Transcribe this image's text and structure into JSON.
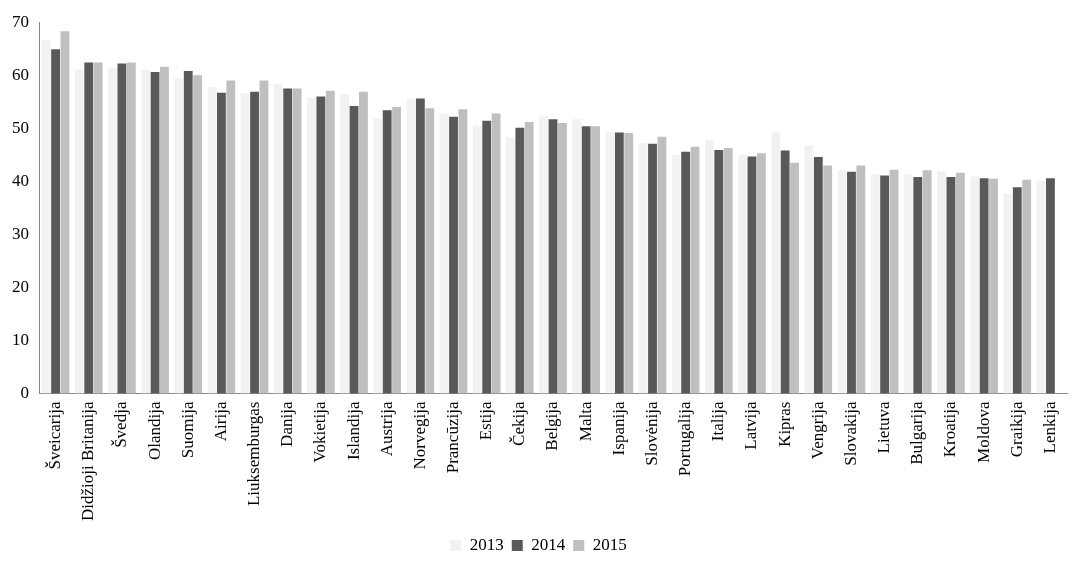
{
  "chart_data": {
    "type": "bar",
    "categories": [
      "Šveicarija",
      "Didžioji Britanija",
      "Švedja",
      "Olandija",
      "Suomija",
      "Airija",
      "Liuksemburgas",
      "Danija",
      "Vokietija",
      "Islandija",
      "Austrija",
      "Norvegija",
      "Prancūzija",
      "Estija",
      "Čekija",
      "Belgija",
      "Malta",
      "Ispanija",
      "Slovėnija",
      "Portugalija",
      "Italija",
      "Latvija",
      "Kipras",
      "Vengrija",
      "Slovakija",
      "Lietuva",
      "Bulgarija",
      "Kroatija",
      "Moldova",
      "Graikija",
      "Lenkija"
    ],
    "series": [
      {
        "name": "2013",
        "color": "#f2f2f2",
        "values": [
          66.6,
          61.2,
          61.4,
          61.0,
          59.5,
          57.8,
          56.6,
          58.3,
          55.8,
          56.4,
          51.8,
          55.6,
          52.8,
          50.5,
          48.3,
          52.4,
          51.7,
          49.3,
          47.2,
          45.0,
          47.8,
          45.0,
          49.2,
          46.8,
          42.1,
          41.4,
          41.3,
          41.9,
          40.9,
          37.7,
          40.1
        ]
      },
      {
        "name": "2014",
        "color": "#595959",
        "values": [
          64.9,
          62.4,
          62.2,
          60.6,
          60.8,
          56.7,
          56.9,
          57.5,
          56.0,
          54.2,
          53.4,
          55.6,
          52.2,
          51.4,
          50.1,
          51.7,
          50.4,
          49.2,
          47.1,
          45.6,
          45.9,
          44.7,
          45.8,
          44.6,
          41.8,
          41.1,
          40.8,
          40.8,
          40.6,
          38.9,
          40.6
        ]
      },
      {
        "name": "2015",
        "color": "#bfbfbf",
        "values": [
          68.3,
          62.4,
          62.4,
          61.6,
          60.0,
          59.0,
          59.0,
          57.5,
          57.1,
          56.9,
          54.0,
          53.8,
          53.6,
          52.8,
          51.2,
          51.0,
          50.4,
          49.1,
          48.4,
          46.5,
          46.3,
          45.3,
          43.5,
          43.0,
          43.0,
          42.2,
          42.1,
          41.6,
          40.5,
          40.3,
          null
        ]
      }
    ],
    "ylim": [
      0,
      70
    ],
    "yticks": [
      0,
      10,
      20,
      30,
      40,
      50,
      60,
      70
    ],
    "grid": false,
    "legend": "bottom"
  }
}
